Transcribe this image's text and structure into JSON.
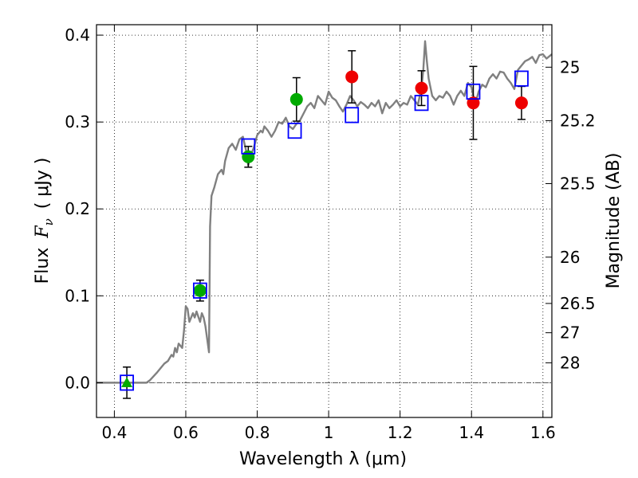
{
  "chart_data": {
    "type": "scatter",
    "title": "",
    "xlabel": "Wavelength  λ (μm)",
    "ylabel_text": "Flux",
    "ylabel_symbol": "F",
    "ylabel_subscript": "ν",
    "ylabel_units": "( μJy )",
    "y2label": "Magnitude (AB)",
    "xlim": [
      0.35,
      1.625
    ],
    "ylim": [
      -0.04,
      0.412
    ],
    "grid": true,
    "grid_style": "dotted",
    "x_ticks": [
      {
        "value": 0.4,
        "label": "0.4"
      },
      {
        "value": 0.6,
        "label": "0.6"
      },
      {
        "value": 0.8,
        "label": "0.8"
      },
      {
        "value": 1.0,
        "label": "1"
      },
      {
        "value": 1.2,
        "label": "1.2"
      },
      {
        "value": 1.4,
        "label": "1.4"
      },
      {
        "value": 1.6,
        "label": "1.6"
      }
    ],
    "y_ticks": [
      {
        "value": 0.0,
        "label": "0.0"
      },
      {
        "value": 0.1,
        "label": "0.1"
      },
      {
        "value": 0.2,
        "label": "0.2"
      },
      {
        "value": 0.3,
        "label": "0.3"
      },
      {
        "value": 0.4,
        "label": "0.4"
      }
    ],
    "mag_ticks": [
      {
        "flux": 0.3631,
        "label": "25"
      },
      {
        "flux": 0.3016,
        "label": "25.2"
      },
      {
        "flux": 0.2291,
        "label": "25.5"
      },
      {
        "flux": 0.1445,
        "label": "26"
      },
      {
        "flux": 0.0912,
        "label": "26.5"
      },
      {
        "flux": 0.0575,
        "label": "27"
      },
      {
        "flux": 0.0229,
        "label": "28"
      }
    ],
    "zero_line": {
      "value": 0.0,
      "style": "dashdot",
      "color": "#555555"
    },
    "colors": {
      "model": "#808080",
      "model_points": "#0000ff",
      "detections_optical": "#00aa00",
      "detections_nir": "#ee0000",
      "errorbars": "#000000"
    },
    "model_spectrum": [
      [
        0.35,
        0.0
      ],
      [
        0.4,
        0.0
      ],
      [
        0.45,
        0.0
      ],
      [
        0.49,
        0.0
      ],
      [
        0.5,
        0.003
      ],
      [
        0.52,
        0.012
      ],
      [
        0.54,
        0.022
      ],
      [
        0.55,
        0.025
      ],
      [
        0.56,
        0.032
      ],
      [
        0.565,
        0.03
      ],
      [
        0.57,
        0.04
      ],
      [
        0.575,
        0.035
      ],
      [
        0.58,
        0.045
      ],
      [
        0.59,
        0.04
      ],
      [
        0.595,
        0.06
      ],
      [
        0.6,
        0.088
      ],
      [
        0.605,
        0.085
      ],
      [
        0.61,
        0.07
      ],
      [
        0.62,
        0.08
      ],
      [
        0.625,
        0.075
      ],
      [
        0.63,
        0.082
      ],
      [
        0.64,
        0.07
      ],
      [
        0.645,
        0.08
      ],
      [
        0.65,
        0.075
      ],
      [
        0.655,
        0.065
      ],
      [
        0.66,
        0.05
      ],
      [
        0.665,
        0.035
      ],
      [
        0.668,
        0.18
      ],
      [
        0.672,
        0.215
      ],
      [
        0.68,
        0.225
      ],
      [
        0.69,
        0.24
      ],
      [
        0.7,
        0.245
      ],
      [
        0.705,
        0.24
      ],
      [
        0.71,
        0.255
      ],
      [
        0.72,
        0.27
      ],
      [
        0.73,
        0.275
      ],
      [
        0.74,
        0.268
      ],
      [
        0.75,
        0.28
      ],
      [
        0.76,
        0.283
      ],
      [
        0.77,
        0.265
      ],
      [
        0.775,
        0.25
      ],
      [
        0.78,
        0.26
      ],
      [
        0.79,
        0.27
      ],
      [
        0.8,
        0.285
      ],
      [
        0.81,
        0.29
      ],
      [
        0.815,
        0.288
      ],
      [
        0.82,
        0.295
      ],
      [
        0.83,
        0.29
      ],
      [
        0.84,
        0.283
      ],
      [
        0.85,
        0.29
      ],
      [
        0.86,
        0.3
      ],
      [
        0.87,
        0.298
      ],
      [
        0.88,
        0.305
      ],
      [
        0.89,
        0.295
      ],
      [
        0.9,
        0.292
      ],
      [
        0.91,
        0.298
      ],
      [
        0.92,
        0.302
      ],
      [
        0.93,
        0.31
      ],
      [
        0.94,
        0.318
      ],
      [
        0.95,
        0.322
      ],
      [
        0.96,
        0.316
      ],
      [
        0.97,
        0.33
      ],
      [
        0.98,
        0.325
      ],
      [
        0.99,
        0.32
      ],
      [
        1.0,
        0.335
      ],
      [
        1.01,
        0.328
      ],
      [
        1.02,
        0.325
      ],
      [
        1.03,
        0.318
      ],
      [
        1.04,
        0.312
      ],
      [
        1.05,
        0.32
      ],
      [
        1.06,
        0.33
      ],
      [
        1.07,
        0.325
      ],
      [
        1.08,
        0.318
      ],
      [
        1.09,
        0.323
      ],
      [
        1.1,
        0.32
      ],
      [
        1.11,
        0.316
      ],
      [
        1.12,
        0.322
      ],
      [
        1.13,
        0.318
      ],
      [
        1.14,
        0.325
      ],
      [
        1.15,
        0.31
      ],
      [
        1.16,
        0.322
      ],
      [
        1.17,
        0.316
      ],
      [
        1.18,
        0.32
      ],
      [
        1.19,
        0.325
      ],
      [
        1.2,
        0.318
      ],
      [
        1.21,
        0.322
      ],
      [
        1.22,
        0.32
      ],
      [
        1.23,
        0.33
      ],
      [
        1.24,
        0.325
      ],
      [
        1.25,
        0.32
      ],
      [
        1.255,
        0.33
      ],
      [
        1.26,
        0.34
      ],
      [
        1.265,
        0.36
      ],
      [
        1.27,
        0.393
      ],
      [
        1.275,
        0.37
      ],
      [
        1.28,
        0.35
      ],
      [
        1.29,
        0.33
      ],
      [
        1.3,
        0.325
      ],
      [
        1.31,
        0.33
      ],
      [
        1.32,
        0.328
      ],
      [
        1.33,
        0.335
      ],
      [
        1.34,
        0.33
      ],
      [
        1.35,
        0.32
      ],
      [
        1.36,
        0.33
      ],
      [
        1.37,
        0.336
      ],
      [
        1.38,
        0.33
      ],
      [
        1.39,
        0.345
      ],
      [
        1.4,
        0.34
      ],
      [
        1.41,
        0.32
      ],
      [
        1.42,
        0.335
      ],
      [
        1.43,
        0.343
      ],
      [
        1.44,
        0.34
      ],
      [
        1.45,
        0.35
      ],
      [
        1.46,
        0.355
      ],
      [
        1.47,
        0.35
      ],
      [
        1.48,
        0.358
      ],
      [
        1.49,
        0.357
      ],
      [
        1.5,
        0.35
      ],
      [
        1.51,
        0.345
      ],
      [
        1.52,
        0.338
      ],
      [
        1.53,
        0.36
      ],
      [
        1.54,
        0.365
      ],
      [
        1.55,
        0.37
      ],
      [
        1.56,
        0.372
      ],
      [
        1.57,
        0.375
      ],
      [
        1.58,
        0.368
      ],
      [
        1.59,
        0.377
      ],
      [
        1.6,
        0.378
      ],
      [
        1.61,
        0.373
      ],
      [
        1.625,
        0.378
      ]
    ],
    "model_points": [
      {
        "x": 0.435,
        "y": 0.0
      },
      {
        "x": 0.64,
        "y": 0.106
      },
      {
        "x": 0.775,
        "y": 0.272
      },
      {
        "x": 0.905,
        "y": 0.29
      },
      {
        "x": 1.065,
        "y": 0.308
      },
      {
        "x": 1.26,
        "y": 0.322
      },
      {
        "x": 1.405,
        "y": 0.335
      },
      {
        "x": 1.54,
        "y": 0.35
      }
    ],
    "detections": [
      {
        "x": 0.435,
        "y": 0.0,
        "err": 0.018,
        "marker": "triangle",
        "color": "#00aa00"
      },
      {
        "x": 0.64,
        "y": 0.106,
        "err": 0.012,
        "marker": "circle",
        "color": "#00aa00"
      },
      {
        "x": 0.775,
        "y": 0.26,
        "err": 0.012,
        "marker": "circle",
        "color": "#00aa00"
      },
      {
        "x": 0.91,
        "y": 0.326,
        "err": 0.025,
        "marker": "circle",
        "color": "#00aa00"
      },
      {
        "x": 1.065,
        "y": 0.352,
        "err": 0.03,
        "marker": "circle",
        "color": "#ee0000"
      },
      {
        "x": 1.26,
        "y": 0.339,
        "err": 0.02,
        "marker": "circle",
        "color": "#ee0000"
      },
      {
        "x": 1.405,
        "y": 0.322,
        "err": 0.042,
        "marker": "circle",
        "color": "#ee0000"
      },
      {
        "x": 1.54,
        "y": 0.322,
        "err": 0.019,
        "marker": "circle",
        "color": "#ee0000"
      }
    ]
  }
}
